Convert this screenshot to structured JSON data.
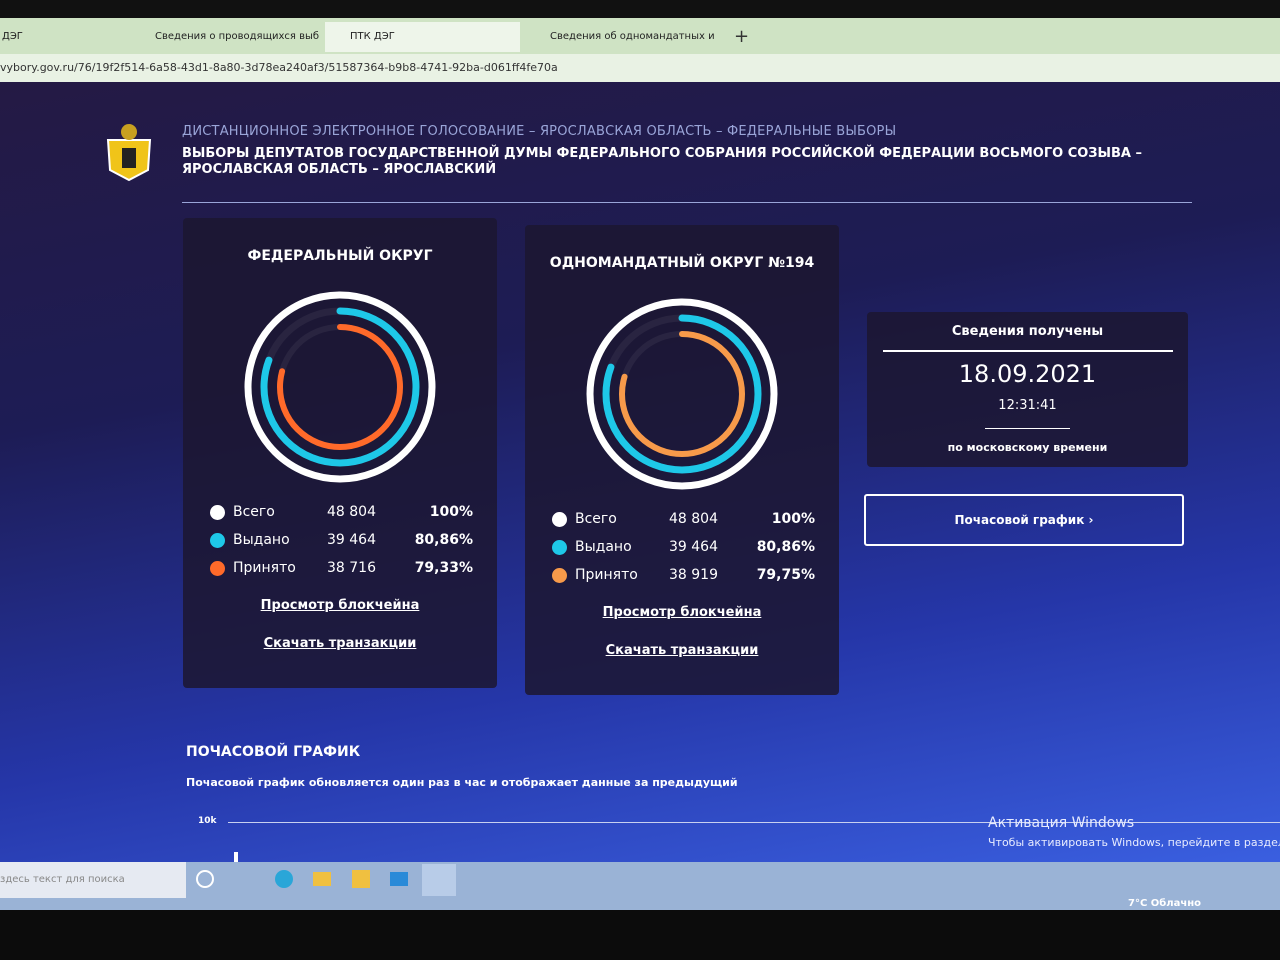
{
  "browser": {
    "tabs": [
      "ДЭГ",
      "Сведения о проводящихся выб",
      "ПТК ДЭГ",
      "Сведения об одномандатных и"
    ],
    "url": "vybory.gov.ru/76/19f2f514-6a58-43d1-8a80-3d78ea240af3/51587364-b9b8-4741-92ba-d061ff4fe70a"
  },
  "header": {
    "subtitle": "ДИСТАНЦИОННОЕ ЭЛЕКТРОННОЕ ГОЛОСОВАНИЕ – ЯРОСЛАВСКАЯ ОБЛАСТЬ – ФЕДЕРАЛЬНЫЕ ВЫБОРЫ",
    "title": "ВЫБОРЫ ДЕПУТАТОВ ГОСУДАРСТВЕННОЙ ДУМЫ ФЕДЕРАЛЬНОГО СОБРАНИЯ РОССИЙСКОЙ ФЕДЕРАЦИИ ВОСЬМОГО СОЗЫВА – ЯРОСЛАВСКАЯ ОБЛАСТЬ – ЯРОСЛАВСКИЙ"
  },
  "panels": [
    {
      "title": "ФЕДЕРАЛЬНЫЙ ОКРУГ",
      "rows": [
        {
          "label": "Всего",
          "color": "#ffffff",
          "count": {
            "value": 48804,
            "label": "48 804"
          },
          "percent": {
            "value": 100,
            "label": "100%"
          }
        },
        {
          "label": "Выдано",
          "color": "#1ec8e8",
          "count": {
            "value": 39464,
            "label": "39 464"
          },
          "percent": {
            "value": 80.86,
            "label": "80,86%"
          }
        },
        {
          "label": "Принято",
          "color": "#ff6a2a",
          "count": {
            "value": 38716,
            "label": "38 716"
          },
          "percent": {
            "value": 79.33,
            "label": "79,33%"
          }
        }
      ],
      "links": [
        "Просмотр блокчейна",
        "Скачать транзакции"
      ]
    },
    {
      "title": "ОДНОМАНДАТНЫЙ ОКРУГ №194",
      "rows": [
        {
          "label": "Всего",
          "color": "#ffffff",
          "count": {
            "value": 48804,
            "label": "48 804"
          },
          "percent": {
            "value": 100,
            "label": "100%"
          }
        },
        {
          "label": "Выдано",
          "color": "#1ec8e8",
          "count": {
            "value": 39464,
            "label": "39 464"
          },
          "percent": {
            "value": 80.86,
            "label": "80,86%"
          }
        },
        {
          "label": "Принято",
          "color": "#f79a4a",
          "count": {
            "value": 38919,
            "label": "38 919"
          },
          "percent": {
            "value": 79.75,
            "label": "79,75%"
          }
        }
      ],
      "links": [
        "Просмотр блокчейна",
        "Скачать транзакции"
      ]
    }
  ],
  "info": {
    "title": "Сведения получены",
    "date": "18.09.2021",
    "time": "12:31:41",
    "note": "по московскому времени"
  },
  "button": "Почасовой график ›",
  "hourly": {
    "title": "ПОЧАСОВОЙ ГРАФИК",
    "description": "Почасовой график обновляется один раз в час и отображает данные за предыдущий",
    "ytick": "10k"
  },
  "watermark": {
    "title": "Активация Windows",
    "text": "Чтобы активировать Windows, перейдите в раздел \""
  },
  "taskbar": {
    "search": "здесь текст для поиска",
    "weather": "7°C Облачно"
  }
}
